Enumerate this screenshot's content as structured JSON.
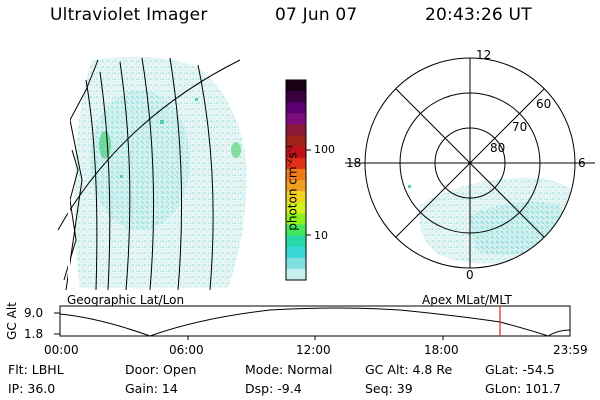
{
  "header": {
    "title": "Ultraviolet Imager",
    "date": "07 Jun 07",
    "time": "20:43:26 UT"
  },
  "colorbar": {
    "label_main": "photon cm",
    "label_sup1": "-2",
    "label_s": "s",
    "label_sup2": "-1",
    "ticks": [
      "100",
      "10"
    ],
    "colors": [
      "#1a0016",
      "#3a0040",
      "#5a0070",
      "#7a0f7a",
      "#8b1a3a",
      "#a0201a",
      "#c0101a",
      "#e0301a",
      "#f07a1a",
      "#f0a01e",
      "#f0d21e",
      "#d4f01a",
      "#8af01e",
      "#40e85a",
      "#28d8a8",
      "#38d8d8",
      "#80e0e0",
      "#c8f0f0"
    ]
  },
  "panels": {
    "left_label": "Geographic Lat/Lon",
    "right_label": "Apex MLat/MLT",
    "polar_labels": {
      "top": "12",
      "left": "18",
      "right": "6",
      "bottom": "0",
      "lat60": "60",
      "lat70": "70",
      "lat80": "80"
    }
  },
  "altitude_plot": {
    "ylabel": "GC Alt",
    "y_hi": "9.0",
    "y_lo": "1.8",
    "x_ticks": [
      "00:00",
      "06:00",
      "12:00",
      "18:00",
      "23:59"
    ],
    "marker_color": "#e02020"
  },
  "footer": {
    "flt": "Flt:  LBHL",
    "ip": "IP:  36.0",
    "door": "Door:  Open",
    "gain": "Gain:  14",
    "mode": "Mode:  Normal",
    "dsp": "Dsp:    -9.4",
    "gcalt": "GC Alt:  4.8 Re",
    "seq": "Seq:  39",
    "glat": "GLat:   -54.5",
    "glon": "GLon:  101.7"
  }
}
